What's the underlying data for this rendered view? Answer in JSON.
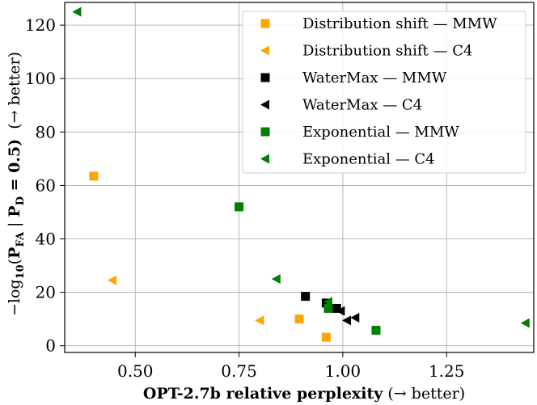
{
  "chart_data": {
    "type": "scatter",
    "xlabel_bold": "OPT-2.7b relative perplexity",
    "xlabel_rest": "(→ better)",
    "ylabel_prefix": "−log",
    "ylabel_sub": "10",
    "ylabel_open": "(",
    "ylabel_pfa": "P",
    "ylabel_pfa_sub": "FA",
    "ylabel_mid": " | ",
    "ylabel_pd": "P",
    "ylabel_pd_sub": "D",
    "ylabel_eq": " = 0.5)",
    "ylabel_rest": "(→ better)",
    "xlim": [
      0.33,
      1.46
    ],
    "ylim": [
      -2.5,
      128.5
    ],
    "xticks": [
      0.5,
      0.75,
      1.0,
      1.25
    ],
    "xtick_labels": [
      "0.50",
      "0.75",
      "1.00",
      "1.25"
    ],
    "yticks": [
      0,
      20,
      40,
      60,
      80,
      100,
      120
    ],
    "ytick_labels": [
      "0",
      "20",
      "40",
      "60",
      "80",
      "100",
      "120"
    ],
    "grid": true,
    "legend_position": "top-right",
    "series": [
      {
        "name": "Distribution shift — MMW",
        "color": "#ffa500",
        "marker": "square",
        "points": [
          [
            0.4,
            63.5
          ],
          [
            0.895,
            10.0
          ],
          [
            0.96,
            3.2
          ]
        ]
      },
      {
        "name": "Distribution shift — C4",
        "color": "#ffa500",
        "marker": "triangle-left",
        "points": [
          [
            0.445,
            24.5
          ],
          [
            0.8,
            9.5
          ]
        ]
      },
      {
        "name": "WaterMax — MMW",
        "color": "#000000",
        "marker": "square",
        "points": [
          [
            0.91,
            18.5
          ],
          [
            0.96,
            16.0
          ],
          [
            0.985,
            14.0
          ]
        ]
      },
      {
        "name": "WaterMax — C4",
        "color": "#000000",
        "marker": "triangle-left",
        "points": [
          [
            0.995,
            13.0
          ],
          [
            1.01,
            9.5
          ],
          [
            1.03,
            10.5
          ]
        ]
      },
      {
        "name": "Exponential — MMW",
        "color": "#008000",
        "marker": "square",
        "points": [
          [
            0.75,
            52.0
          ],
          [
            0.965,
            14.0
          ],
          [
            1.08,
            5.8
          ]
        ]
      },
      {
        "name": "Exponential — C4",
        "color": "#008000",
        "marker": "triangle-left",
        "points": [
          [
            0.36,
            125.0
          ],
          [
            0.84,
            25.0
          ],
          [
            0.965,
            16.5
          ],
          [
            1.44,
            8.5
          ]
        ]
      }
    ]
  }
}
